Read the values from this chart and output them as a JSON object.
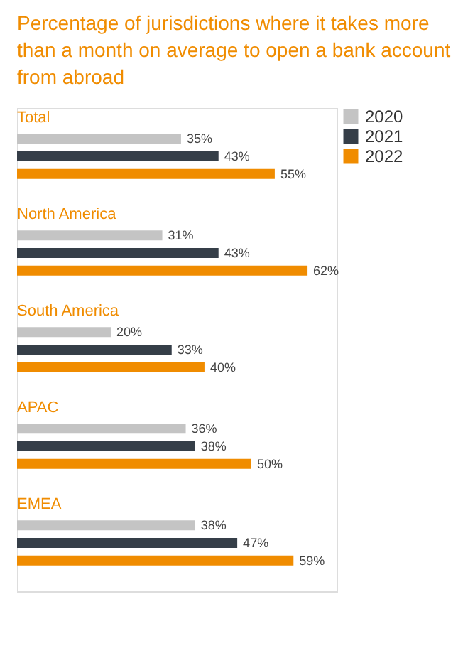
{
  "chart_data": {
    "type": "bar",
    "orientation": "horizontal",
    "title": "Percentage of jurisdictions where it takes more than a month on average to open a bank account from abroad",
    "categories": [
      "Total",
      "North America",
      "South America",
      "APAC",
      "EMEA"
    ],
    "series": [
      {
        "name": "2020",
        "color": "#c4c4c4",
        "values": [
          35,
          31,
          20,
          36,
          38
        ],
        "value_labels": [
          "35%",
          "31%",
          "20%",
          "36%",
          "38%"
        ]
      },
      {
        "name": "2021",
        "color": "#353e48",
        "values": [
          43,
          43,
          33,
          38,
          47
        ],
        "value_labels": [
          "43%",
          "43%",
          "33%",
          "38%",
          "47%"
        ]
      },
      {
        "name": "2022",
        "color": "#f08c00",
        "values": [
          55,
          62,
          40,
          50,
          59
        ],
        "value_labels": [
          "55%",
          "62%",
          "40%",
          "50%",
          "59%"
        ]
      }
    ],
    "legend": "right"
  }
}
